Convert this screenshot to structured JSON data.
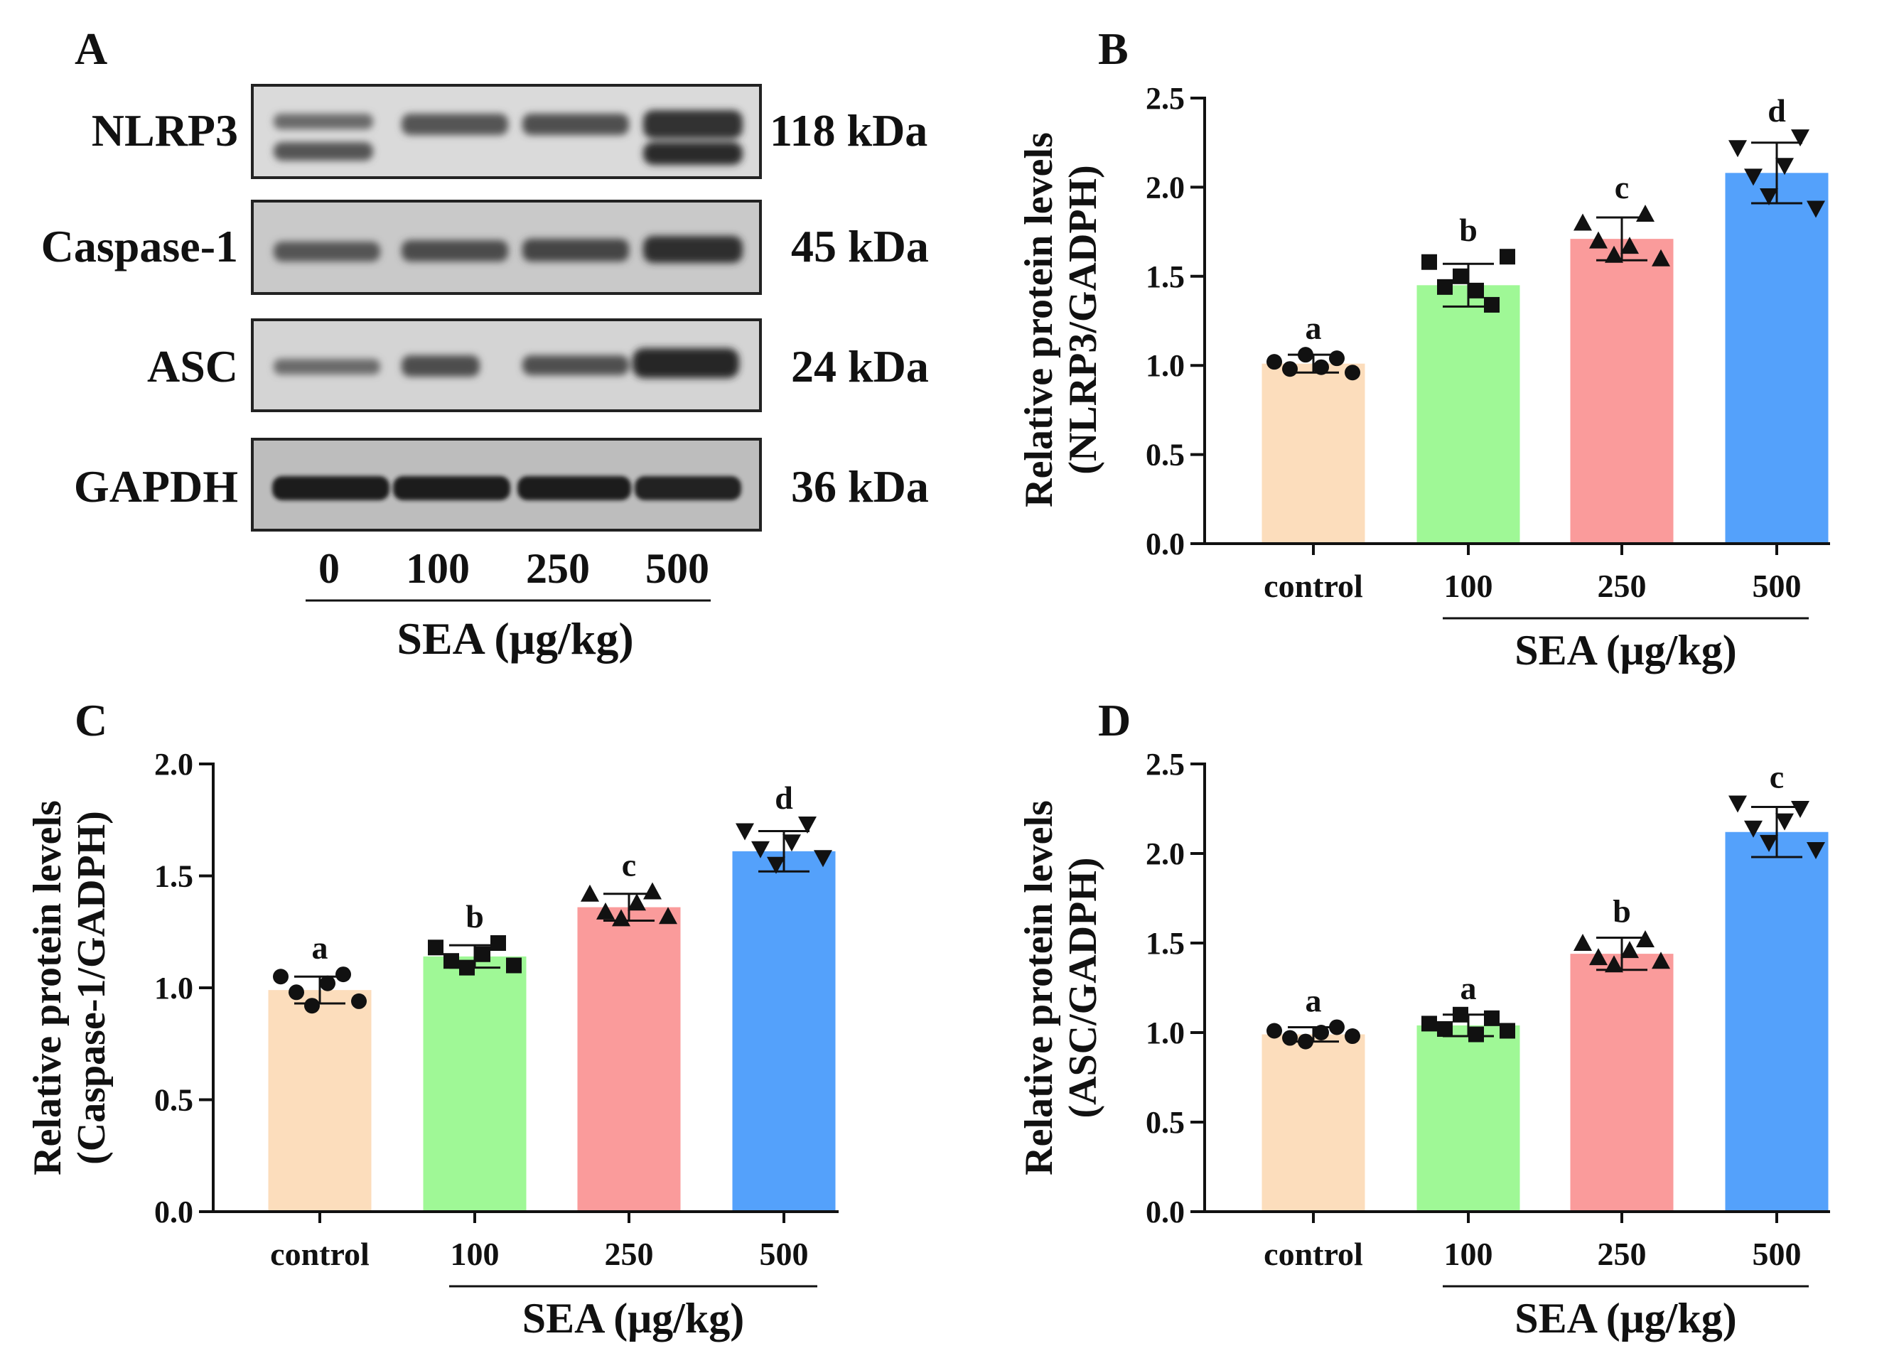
{
  "figure": {
    "xlabel": "SEA (μg/kg)",
    "categories": [
      "control",
      "100",
      "250",
      "500"
    ],
    "colors": {
      "control": "#fcddbc",
      "100": "#9ff896",
      "250": "#fa9b9b",
      "500": "#54a1fb"
    },
    "ylabel_line1": "Relative protein levels"
  },
  "blot": {
    "panel_label": "A",
    "bands": [
      {
        "protein": "NLRP3",
        "kda": "118 kDa"
      },
      {
        "protein": "Caspase-1",
        "kda": "45 kDa"
      },
      {
        "protein": "ASC",
        "kda": "24 kDa"
      },
      {
        "protein": "GAPDH",
        "kda": "36 kDa"
      }
    ],
    "doses": [
      "0",
      "100",
      "250",
      "500"
    ],
    "xlabel": "SEA (μg/kg)"
  },
  "chart_data": [
    {
      "panel": "B",
      "type": "bar",
      "categories": [
        "control",
        "100",
        "250",
        "500"
      ],
      "values": [
        1.01,
        1.45,
        1.71,
        2.08
      ],
      "errors": [
        0.05,
        0.12,
        0.12,
        0.17
      ],
      "letters": [
        "a",
        "b",
        "c",
        "d"
      ],
      "markers": [
        "circle",
        "square",
        "triangle",
        "triangle-down"
      ],
      "points": [
        [
          1.02,
          0.98,
          1.06,
          0.99,
          1.04,
          0.96
        ],
        [
          1.58,
          1.44,
          1.5,
          1.42,
          1.34,
          1.61
        ],
        [
          1.8,
          1.7,
          1.62,
          1.67,
          1.85,
          1.6
        ],
        [
          2.22,
          2.06,
          1.95,
          2.12,
          2.28,
          1.88
        ]
      ],
      "title": "",
      "xlabel": "SEA (μg/kg)",
      "ylabel": "Relative protein levels (NLRP3/GADPH)",
      "ylim": [
        0,
        2.5
      ],
      "yticks": [
        "0.0",
        "0.5",
        "1.0",
        "1.5",
        "2.0",
        "2.5"
      ]
    },
    {
      "panel": "C",
      "type": "bar",
      "categories": [
        "control",
        "100",
        "250",
        "500"
      ],
      "values": [
        0.99,
        1.14,
        1.36,
        1.61
      ],
      "errors": [
        0.06,
        0.05,
        0.06,
        0.09
      ],
      "letters": [
        "a",
        "b",
        "c",
        "d"
      ],
      "markers": [
        "circle",
        "square",
        "triangle",
        "triangle-down"
      ],
      "points": [
        [
          1.05,
          0.98,
          0.92,
          1.02,
          1.06,
          0.94
        ],
        [
          1.18,
          1.12,
          1.09,
          1.15,
          1.2,
          1.1
        ],
        [
          1.42,
          1.34,
          1.31,
          1.38,
          1.43,
          1.32
        ],
        [
          1.7,
          1.62,
          1.55,
          1.65,
          1.73,
          1.58
        ]
      ],
      "title": "",
      "xlabel": "SEA (μg/kg)",
      "ylabel": "Relative protein levels (Caspase-1/GADPH)",
      "ylim": [
        0,
        2.0
      ],
      "yticks": [
        "0.0",
        "0.5",
        "1.0",
        "1.5",
        "2.0"
      ]
    },
    {
      "panel": "D",
      "type": "bar",
      "categories": [
        "control",
        "100",
        "250",
        "500"
      ],
      "values": [
        0.99,
        1.04,
        1.44,
        2.12
      ],
      "errors": [
        0.04,
        0.06,
        0.09,
        0.14
      ],
      "letters": [
        "a",
        "a",
        "b",
        "c"
      ],
      "markers": [
        "circle",
        "square",
        "triangle",
        "triangle-down"
      ],
      "points": [
        [
          1.01,
          0.97,
          0.95,
          1.0,
          1.03,
          0.98
        ],
        [
          1.05,
          1.02,
          1.1,
          0.99,
          1.08,
          1.01
        ],
        [
          1.5,
          1.42,
          1.38,
          1.46,
          1.52,
          1.4
        ],
        [
          2.28,
          2.14,
          2.06,
          2.18,
          2.25,
          2.02
        ]
      ],
      "title": "",
      "xlabel": "SEA (μg/kg)",
      "ylabel": "Relative protein levels (ASC/GADPH)",
      "ylim": [
        0,
        2.5
      ],
      "yticks": [
        "0.0",
        "0.5",
        "1.0",
        "1.5",
        "2.0",
        "2.5"
      ]
    }
  ]
}
